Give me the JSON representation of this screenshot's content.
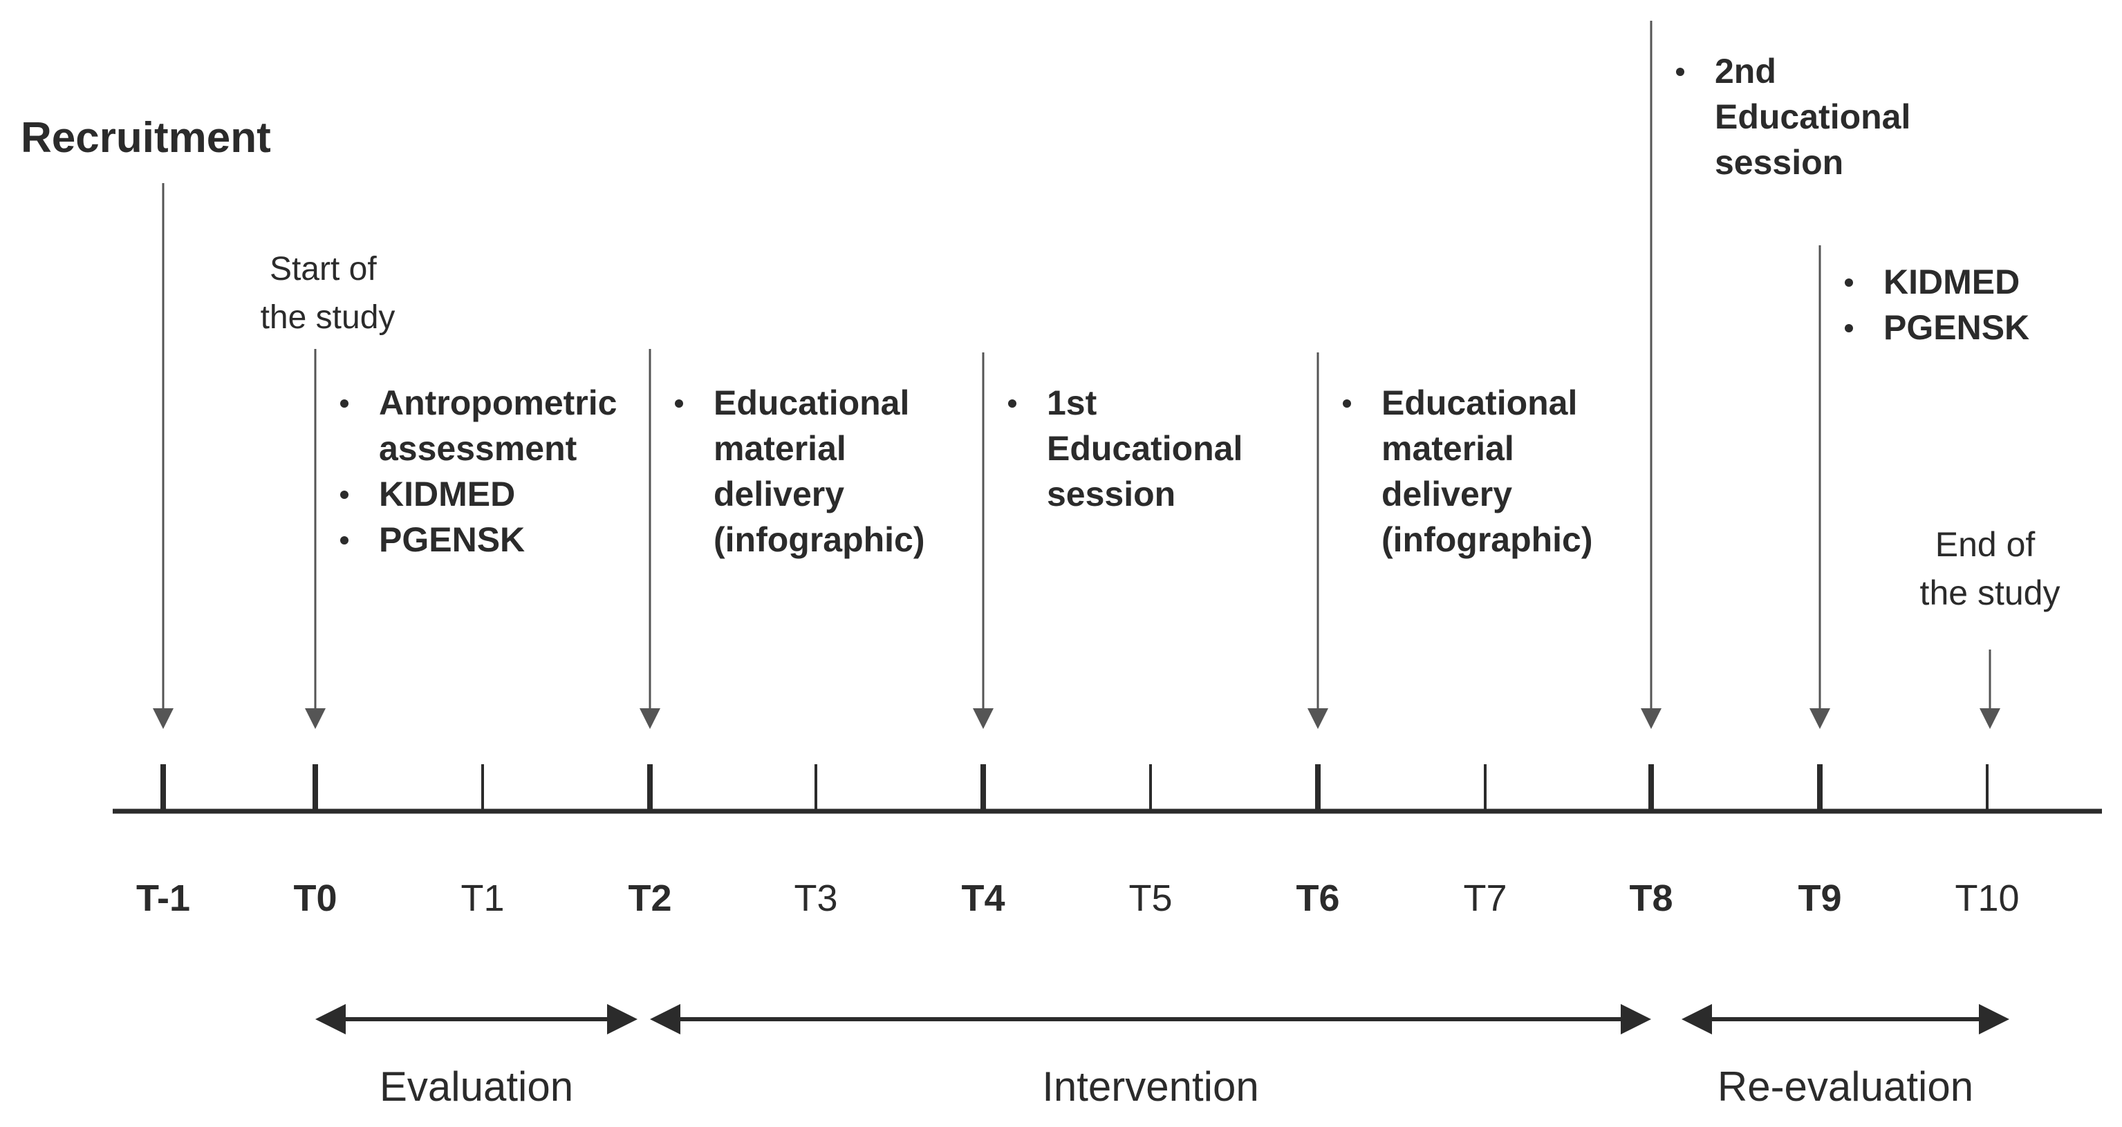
{
  "recruitment_label": "Recruitment",
  "start_label": [
    "Start of",
    "the study"
  ],
  "end_label": [
    "End of",
    "the study"
  ],
  "ticks": [
    {
      "label": "T-1",
      "bold": true
    },
    {
      "label": "T0",
      "bold": true
    },
    {
      "label": "T1",
      "bold": false
    },
    {
      "label": "T2",
      "bold": true
    },
    {
      "label": "T3",
      "bold": false
    },
    {
      "label": "T4",
      "bold": true
    },
    {
      "label": "T5",
      "bold": false
    },
    {
      "label": "T6",
      "bold": true
    },
    {
      "label": "T7",
      "bold": false
    },
    {
      "label": "T8",
      "bold": true
    },
    {
      "label": "T9",
      "bold": true
    },
    {
      "label": "T10",
      "bold": false
    }
  ],
  "events": [
    {
      "tick": "T0",
      "bullets": [
        [
          "Antropometric",
          "assessment"
        ],
        [
          "KIDMED"
        ],
        [
          "PGENSK"
        ]
      ]
    },
    {
      "tick": "T2",
      "bullets": [
        [
          "Educational",
          "material",
          "delivery",
          "(infographic)"
        ]
      ]
    },
    {
      "tick": "T4",
      "bullets": [
        [
          "1st",
          "Educational",
          "session"
        ]
      ]
    },
    {
      "tick": "T6",
      "bullets": [
        [
          "Educational",
          "material",
          "delivery",
          "(infographic)"
        ]
      ]
    },
    {
      "tick": "T8",
      "bullets": [
        [
          "2nd",
          "Educational",
          "session"
        ]
      ]
    },
    {
      "tick": "T9",
      "bullets": [
        [
          "KIDMED"
        ],
        [
          "PGENSK"
        ]
      ]
    }
  ],
  "phases": [
    {
      "label": "Evaluation",
      "from": "T0",
      "to": "T2"
    },
    {
      "label": "Intervention",
      "from": "T2",
      "to": "T8"
    },
    {
      "label": "Re-evaluation",
      "from": "T8",
      "to": "T10"
    }
  ],
  "colors": {
    "line": "#2b2b2b",
    "text": "#2b2b2b",
    "arrow": "#555555"
  }
}
